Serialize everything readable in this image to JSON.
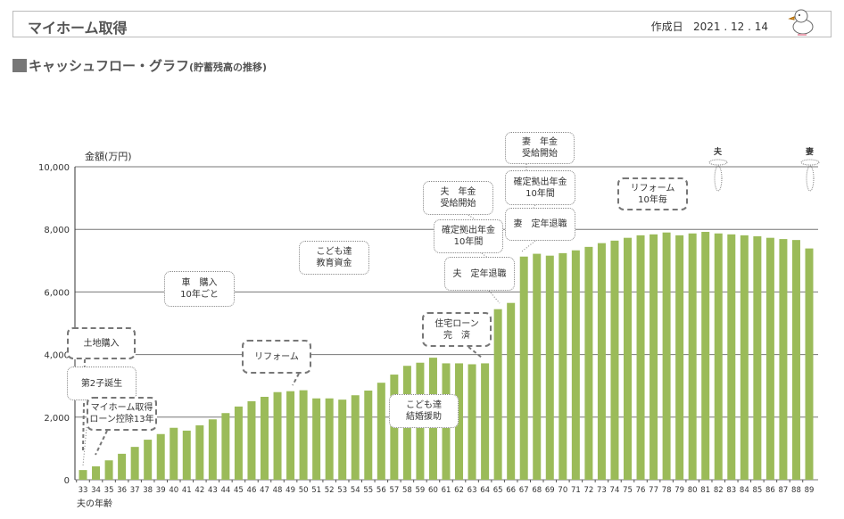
{
  "header": {
    "title": "マイホーム取得",
    "date_label": "作成日",
    "date": "2021 . 12 . 14"
  },
  "section": {
    "title": "キャッシュフロー・グラフ",
    "subtitle": "(貯蓄残高の推移)"
  },
  "chart_data": {
    "type": "bar",
    "title": "キャッシュフロー・グラフ(貯蓄残高の推移)",
    "ylabel": "金額(万円)",
    "xlabel": "夫の年齢",
    "ylim": [
      0,
      10000
    ],
    "yticks": [
      "0",
      "2,000",
      "4,000",
      "6,000",
      "8,000",
      "10,000"
    ],
    "grid": true,
    "bar_color": "#9bbb59",
    "categories": [
      "33",
      "34",
      "35",
      "36",
      "37",
      "38",
      "39",
      "40",
      "41",
      "42",
      "43",
      "44",
      "45",
      "46",
      "47",
      "48",
      "49",
      "50",
      "51",
      "52",
      "53",
      "54",
      "55",
      "56",
      "57",
      "58",
      "59",
      "60",
      "61",
      "62",
      "63",
      "64",
      "65",
      "66",
      "67",
      "68",
      "69",
      "70",
      "71",
      "72",
      "73",
      "74",
      "75",
      "76",
      "77",
      "78",
      "79",
      "80",
      "81",
      "82",
      "83",
      "84",
      "85",
      "86",
      "87",
      "88",
      "89"
    ],
    "values": [
      310,
      430,
      620,
      830,
      1050,
      1280,
      1460,
      1660,
      1570,
      1740,
      1930,
      2130,
      2340,
      2510,
      2650,
      2800,
      2830,
      2860,
      2600,
      2600,
      2560,
      2700,
      2850,
      3100,
      3360,
      3640,
      3740,
      3900,
      3720,
      3720,
      3690,
      3720,
      5450,
      5650,
      7130,
      7220,
      7160,
      7240,
      7330,
      7440,
      7560,
      7640,
      7730,
      7810,
      7840,
      7900,
      7810,
      7870,
      7920,
      7870,
      7840,
      7810,
      7780,
      7730,
      7690,
      7660,
      7390
    ],
    "annotations": [
      {
        "lines": [
          "土地購入"
        ]
      },
      {
        "lines": [
          "第2子誕生"
        ]
      },
      {
        "lines": [
          "マイホーム取得",
          "ローン控除13年"
        ]
      },
      {
        "lines": [
          "車　購入",
          "10年ごと"
        ]
      },
      {
        "lines": [
          "リフォーム"
        ]
      },
      {
        "lines": [
          "こども達",
          "教育資金"
        ]
      },
      {
        "lines": [
          "こども達",
          "結婚援助"
        ]
      },
      {
        "lines": [
          "住宅ローン",
          "完　済"
        ]
      },
      {
        "lines": [
          "夫　年金",
          "受給開始"
        ]
      },
      {
        "lines": [
          "確定拠出年金",
          "10年間"
        ]
      },
      {
        "lines": [
          "夫　定年退職"
        ]
      },
      {
        "lines": [
          "妻　年金",
          "受給開始"
        ]
      },
      {
        "lines": [
          "確定拠出年金",
          "10年間"
        ]
      },
      {
        "lines": [
          "妻　定年退職"
        ]
      },
      {
        "lines": [
          "リフォーム",
          "10年毎"
        ]
      },
      {
        "lines": [
          "夫"
        ]
      },
      {
        "lines": [
          "妻"
        ]
      }
    ]
  }
}
